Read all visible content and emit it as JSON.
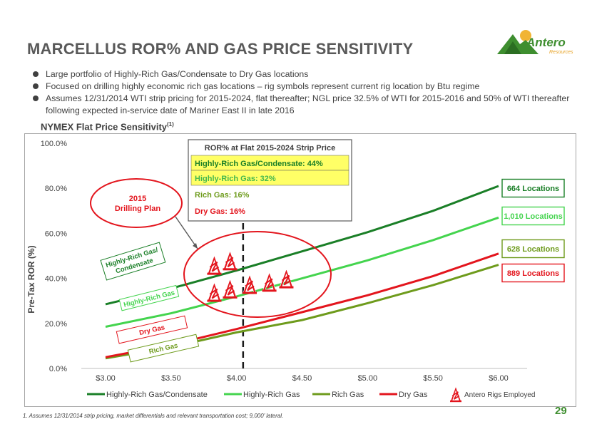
{
  "title": "MARCELLUS ROR% AND GAS PRICE SENSITIVITY",
  "logo": {
    "text": "Antero",
    "sub": "Resources"
  },
  "bullets": [
    "Large portfolio of Highly-Rich Gas/Condensate to Dry Gas locations",
    "Focused on drilling highly economic rich gas locations – rig symbols represent current rig location by Btu regime",
    "Assumes 12/31/2014 WTI strip pricing for 2015-2024, flat thereafter; NGL price 32.5% of WTI for 2015-2016 and 50% of WTI thereafter following expected in-service date of Mariner East II in late 2016"
  ],
  "subtitle": "NYMEX Flat Price Sensitivity",
  "subtitle_sup": "(1)",
  "footnote": "1.  Assumes 12/31/2014 strip pricing, market differentials and relevant transportation cost; 9,000’ lateral.",
  "page_number": "29",
  "colors": {
    "dark_green": "#1a7f27",
    "light_green": "#44d44e",
    "olive_green": "#6e9b1c",
    "red": "#e3151d",
    "gray": "#595959"
  },
  "chart_data": {
    "type": "line",
    "ylabel": "Pre-Tax ROR (%)",
    "xlabel": "",
    "x_ticks": [
      "$3.00",
      "$3.50",
      "$4.00",
      "$4.50",
      "$5.00",
      "$5.50",
      "$6.00"
    ],
    "y_ticks": [
      "0.0%",
      "20.0%",
      "40.0%",
      "60.0%",
      "80.0%",
      "100.0%"
    ],
    "xlim": [
      3.0,
      6.0
    ],
    "ylim": [
      0,
      100
    ],
    "x": [
      3.0,
      3.5,
      4.0,
      4.5,
      5.0,
      5.5,
      6.0
    ],
    "series": [
      {
        "name": "Highly-Rich Gas/Condensate",
        "color": "#1a7f27",
        "values": [
          28.5,
          35.5,
          43.5,
          52,
          60.5,
          70,
          81
        ],
        "end_label": "664 Locations"
      },
      {
        "name": "Highly-Rich Gas",
        "color": "#44d44e",
        "values": [
          18.5,
          24.5,
          32,
          40,
          48,
          57,
          67
        ],
        "end_label": "1,010 Locations"
      },
      {
        "name": "Rich Gas",
        "color": "#6e9b1c",
        "values": [
          4.5,
          9.5,
          16,
          21.5,
          29,
          37,
          46
        ],
        "end_label": "628 Locations"
      },
      {
        "name": "Dry Gas",
        "color": "#e3151d",
        "values": [
          5,
          10.5,
          17.5,
          25,
          32.5,
          41,
          51
        ],
        "end_label": "889 Locations"
      }
    ],
    "vline_x": 4.05,
    "legend_extra": "Antero Rigs Employed",
    "inline_labels": [
      "Highly-Rich Gas/ Condensate",
      "Highly-Rich Gas",
      "Dry Gas",
      "Rich Gas"
    ],
    "callout": {
      "line1": "2015",
      "line2": "Drilling Plan"
    },
    "table": {
      "header": "ROR% at Flat 2015-2024 Strip Price",
      "rows": [
        {
          "text": "Highly-Rich Gas/Condensate: 44%",
          "color": "#1a7f27",
          "highlight": true
        },
        {
          "text": "Highly-Rich Gas: 32%",
          "color": "#44b84e",
          "highlight": true
        },
        {
          "text": "Rich Gas: 16%",
          "color": "#6e9b1c",
          "highlight": false
        },
        {
          "text": "Dry Gas: 16%",
          "color": "#e3151d",
          "highlight": false
        }
      ]
    },
    "rigs": [
      [
        3.83,
        46
      ],
      [
        3.95,
        48
      ],
      [
        3.83,
        34
      ],
      [
        3.95,
        35.5
      ],
      [
        4.1,
        37.5
      ],
      [
        4.25,
        38.5
      ],
      [
        4.38,
        40
      ]
    ],
    "grid": false,
    "legend_position": "bottom"
  }
}
